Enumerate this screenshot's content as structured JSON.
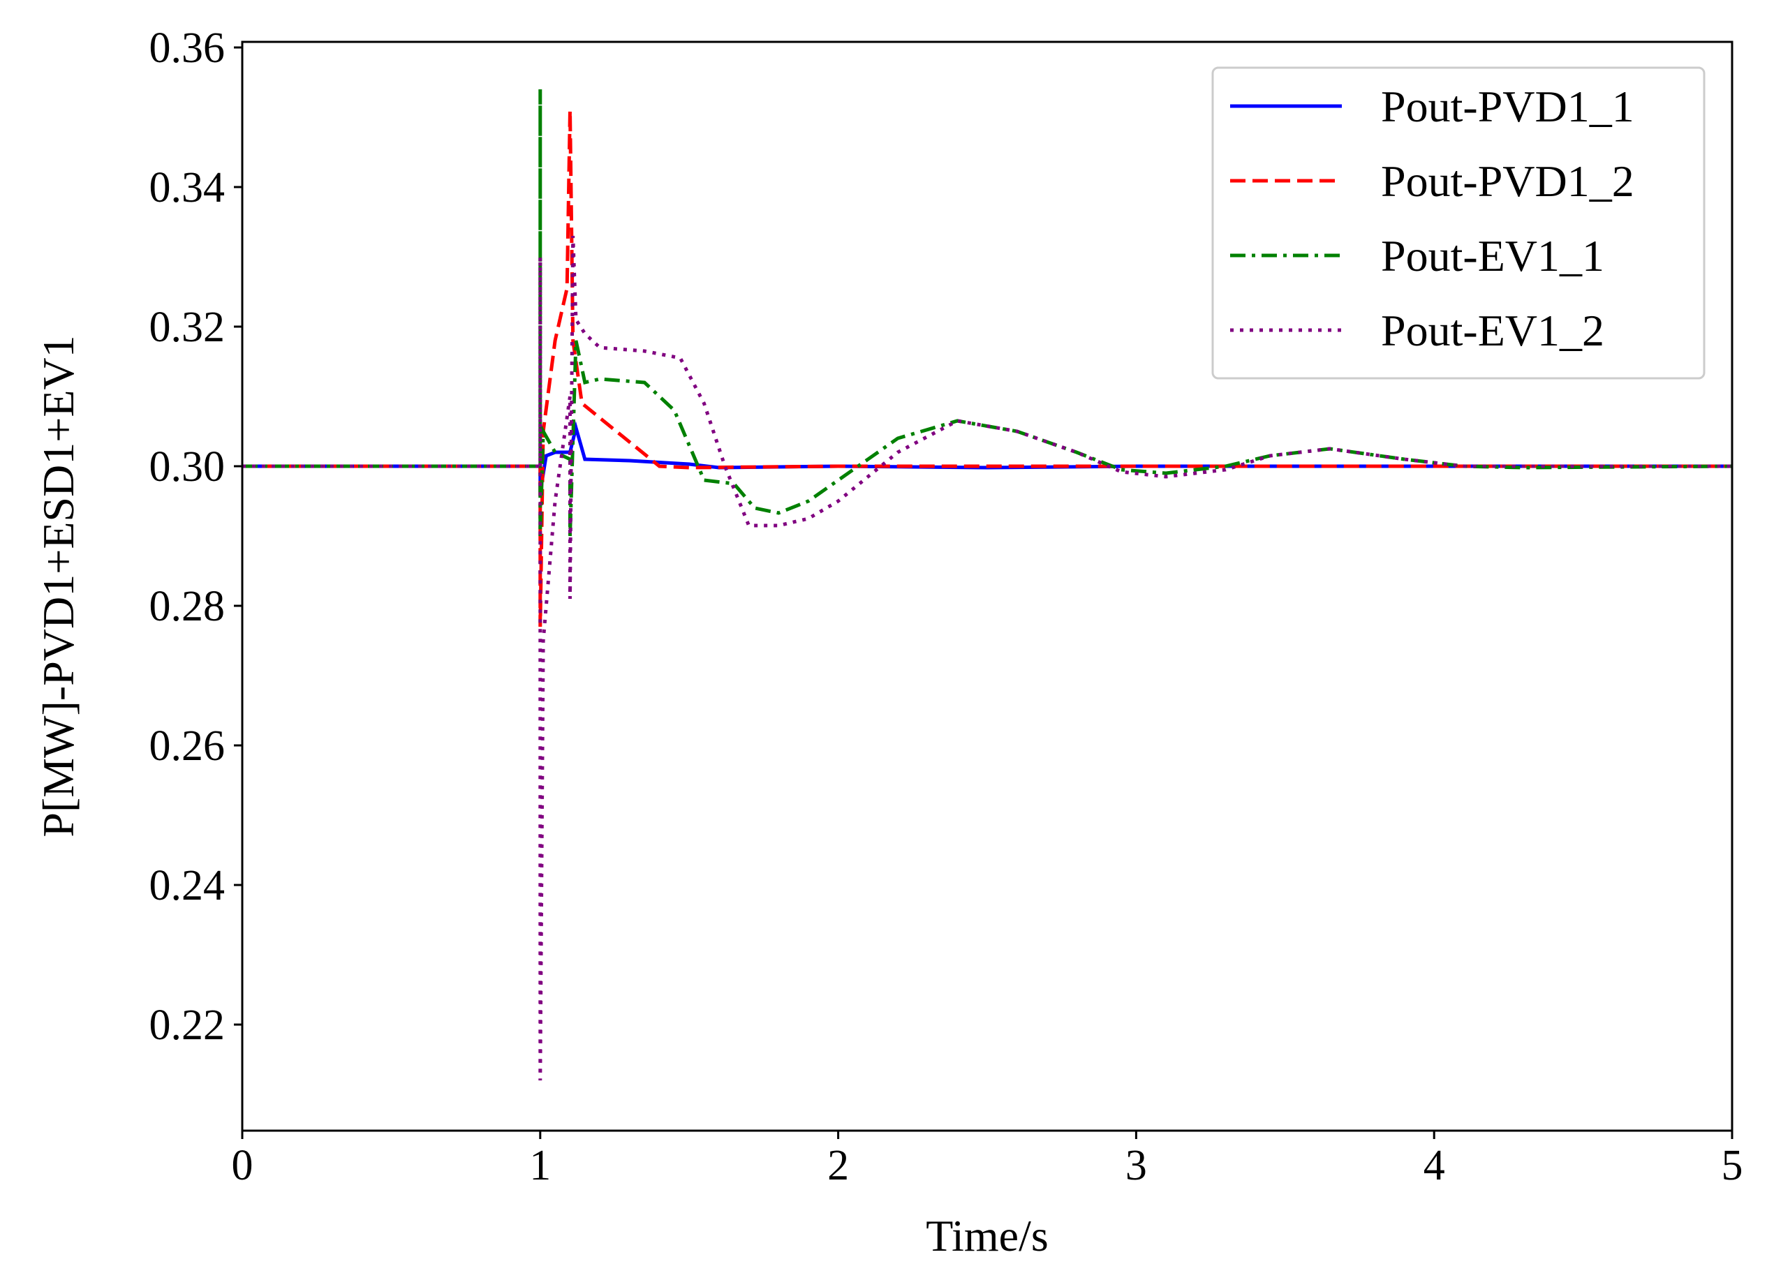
{
  "chart_data": {
    "type": "line",
    "title": "",
    "xlabel": "Time/s",
    "ylabel": "P[MW]-PVD1+ESD1+EV1",
    "xlim": [
      0,
      5
    ],
    "ylim": [
      0.2048,
      0.3608
    ],
    "xticks": [
      0,
      1,
      2,
      3,
      4,
      5
    ],
    "xtick_labels": [
      "0",
      "1",
      "2",
      "3",
      "4",
      "5"
    ],
    "yticks": [
      0.22,
      0.24,
      0.26,
      0.28,
      0.3,
      0.32,
      0.34,
      0.36
    ],
    "ytick_labels": [
      "0.22",
      "0.24",
      "0.26",
      "0.28",
      "0.30",
      "0.32",
      "0.34",
      "0.36"
    ],
    "grid": false,
    "legend_position": "top-right",
    "series": [
      {
        "name": "Pout-PVD1_1",
        "color": "#0000ff",
        "style": "solid",
        "x": [
          0,
          1.0,
          1.0,
          1.02,
          1.05,
          1.1,
          1.12,
          1.15,
          1.3,
          1.5,
          1.6,
          2.0,
          2.5,
          3.0,
          5.0
        ],
        "y": [
          0.3,
          0.3,
          0.2963,
          0.3015,
          0.302,
          0.302,
          0.3055,
          0.301,
          0.3008,
          0.3003,
          0.2998,
          0.3,
          0.2998,
          0.3,
          0.3
        ]
      },
      {
        "name": "Pout-PVD1_2",
        "color": "#ff0000",
        "style": "dashed",
        "x": [
          0,
          1.0,
          1.0,
          1.01,
          1.05,
          1.09,
          1.1,
          1.11,
          1.14,
          1.4,
          1.5,
          2.0,
          5.0
        ],
        "y": [
          0.3,
          0.3,
          0.277,
          0.305,
          0.318,
          0.3255,
          0.351,
          0.318,
          0.309,
          0.3,
          0.2998,
          0.3,
          0.3
        ]
      },
      {
        "name": "Pout-EV1_1",
        "color": "#008000",
        "style": "dashdot",
        "x": [
          0,
          1.0,
          1.0,
          1.0,
          1.01,
          1.05,
          1.1,
          1.1,
          1.12,
          1.15,
          1.2,
          1.35,
          1.45,
          1.55,
          1.65,
          1.72,
          1.8,
          1.9,
          2.0,
          2.1,
          2.2,
          2.4,
          2.6,
          2.8,
          2.95,
          3.1,
          3.3,
          3.45,
          3.65,
          3.9,
          4.1,
          4.3,
          5.0
        ],
        "y": [
          0.3,
          0.3,
          0.354,
          0.29,
          0.305,
          0.302,
          0.301,
          0.29,
          0.318,
          0.312,
          0.3125,
          0.312,
          0.308,
          0.298,
          0.2975,
          0.294,
          0.2933,
          0.295,
          0.298,
          0.301,
          0.304,
          0.3065,
          0.305,
          0.302,
          0.2995,
          0.299,
          0.3,
          0.3015,
          0.3025,
          0.301,
          0.3,
          0.2998,
          0.3
        ]
      },
      {
        "name": "Pout-EV1_2",
        "color": "#800080",
        "style": "dotted",
        "x": [
          0,
          1.0,
          1.0,
          1.0,
          1.01,
          1.05,
          1.1,
          1.1,
          1.11,
          1.12,
          1.15,
          1.2,
          1.35,
          1.47,
          1.55,
          1.62,
          1.7,
          1.8,
          1.9,
          2.0,
          2.1,
          2.2,
          2.4,
          2.6,
          2.8,
          2.95,
          3.1,
          3.3,
          3.45,
          3.65,
          3.9,
          4.1,
          5.0
        ],
        "y": [
          0.3,
          0.3,
          0.33,
          0.212,
          0.275,
          0.295,
          0.31,
          0.281,
          0.333,
          0.321,
          0.319,
          0.317,
          0.3165,
          0.3155,
          0.309,
          0.3,
          0.2915,
          0.2915,
          0.2925,
          0.295,
          0.2985,
          0.302,
          0.3065,
          0.305,
          0.302,
          0.2992,
          0.2985,
          0.2995,
          0.3015,
          0.3025,
          0.301,
          0.3,
          0.3
        ]
      }
    ]
  }
}
